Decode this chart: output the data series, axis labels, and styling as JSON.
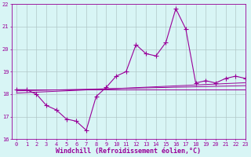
{
  "x_values": [
    0,
    1,
    2,
    3,
    4,
    5,
    6,
    7,
    8,
    9,
    10,
    11,
    12,
    13,
    14,
    15,
    16,
    17,
    18,
    19,
    20,
    21,
    22,
    23
  ],
  "windchill_line": [
    18.2,
    18.2,
    18.0,
    17.5,
    17.3,
    16.9,
    16.8,
    16.4,
    17.9,
    18.3,
    18.8,
    19.0,
    20.2,
    19.8,
    19.7,
    20.3,
    21.8,
    20.9,
    18.5,
    18.6,
    18.5,
    18.7,
    18.8,
    18.7
  ],
  "regression_line1": [
    18.2,
    18.2,
    18.2,
    18.2,
    18.2,
    18.2,
    18.2,
    18.2,
    18.2,
    18.2,
    18.2,
    18.2,
    18.2,
    18.2,
    18.2,
    18.2,
    18.2,
    18.2,
    18.2,
    18.2,
    18.2,
    18.2,
    18.2,
    18.2
  ],
  "regression_line2": [
    18.15,
    18.16,
    18.17,
    18.18,
    18.19,
    18.2,
    18.21,
    18.22,
    18.23,
    18.24,
    18.25,
    18.26,
    18.27,
    18.28,
    18.29,
    18.3,
    18.31,
    18.32,
    18.33,
    18.34,
    18.35,
    18.36,
    18.37,
    18.38
  ],
  "regression_line3": [
    18.05,
    18.07,
    18.09,
    18.11,
    18.13,
    18.15,
    18.17,
    18.19,
    18.21,
    18.23,
    18.25,
    18.27,
    18.29,
    18.31,
    18.33,
    18.35,
    18.37,
    18.39,
    18.41,
    18.43,
    18.45,
    18.47,
    18.49,
    18.51
  ],
  "xlim": [
    -0.5,
    23
  ],
  "ylim": [
    16,
    22
  ],
  "yticks": [
    16,
    17,
    18,
    19,
    20,
    21,
    22
  ],
  "xticks": [
    0,
    1,
    2,
    3,
    4,
    5,
    6,
    7,
    8,
    9,
    10,
    11,
    12,
    13,
    14,
    15,
    16,
    17,
    18,
    19,
    20,
    21,
    22,
    23
  ],
  "xlabel": "Windchill (Refroidissement éolien,°C)",
  "line_color": "#990099",
  "bg_color": "#d8f5f5",
  "grid_color": "#b0c8c8",
  "marker": "+",
  "markersize": 4,
  "linewidth": 0.8,
  "tick_fontsize": 5,
  "xlabel_fontsize": 6
}
